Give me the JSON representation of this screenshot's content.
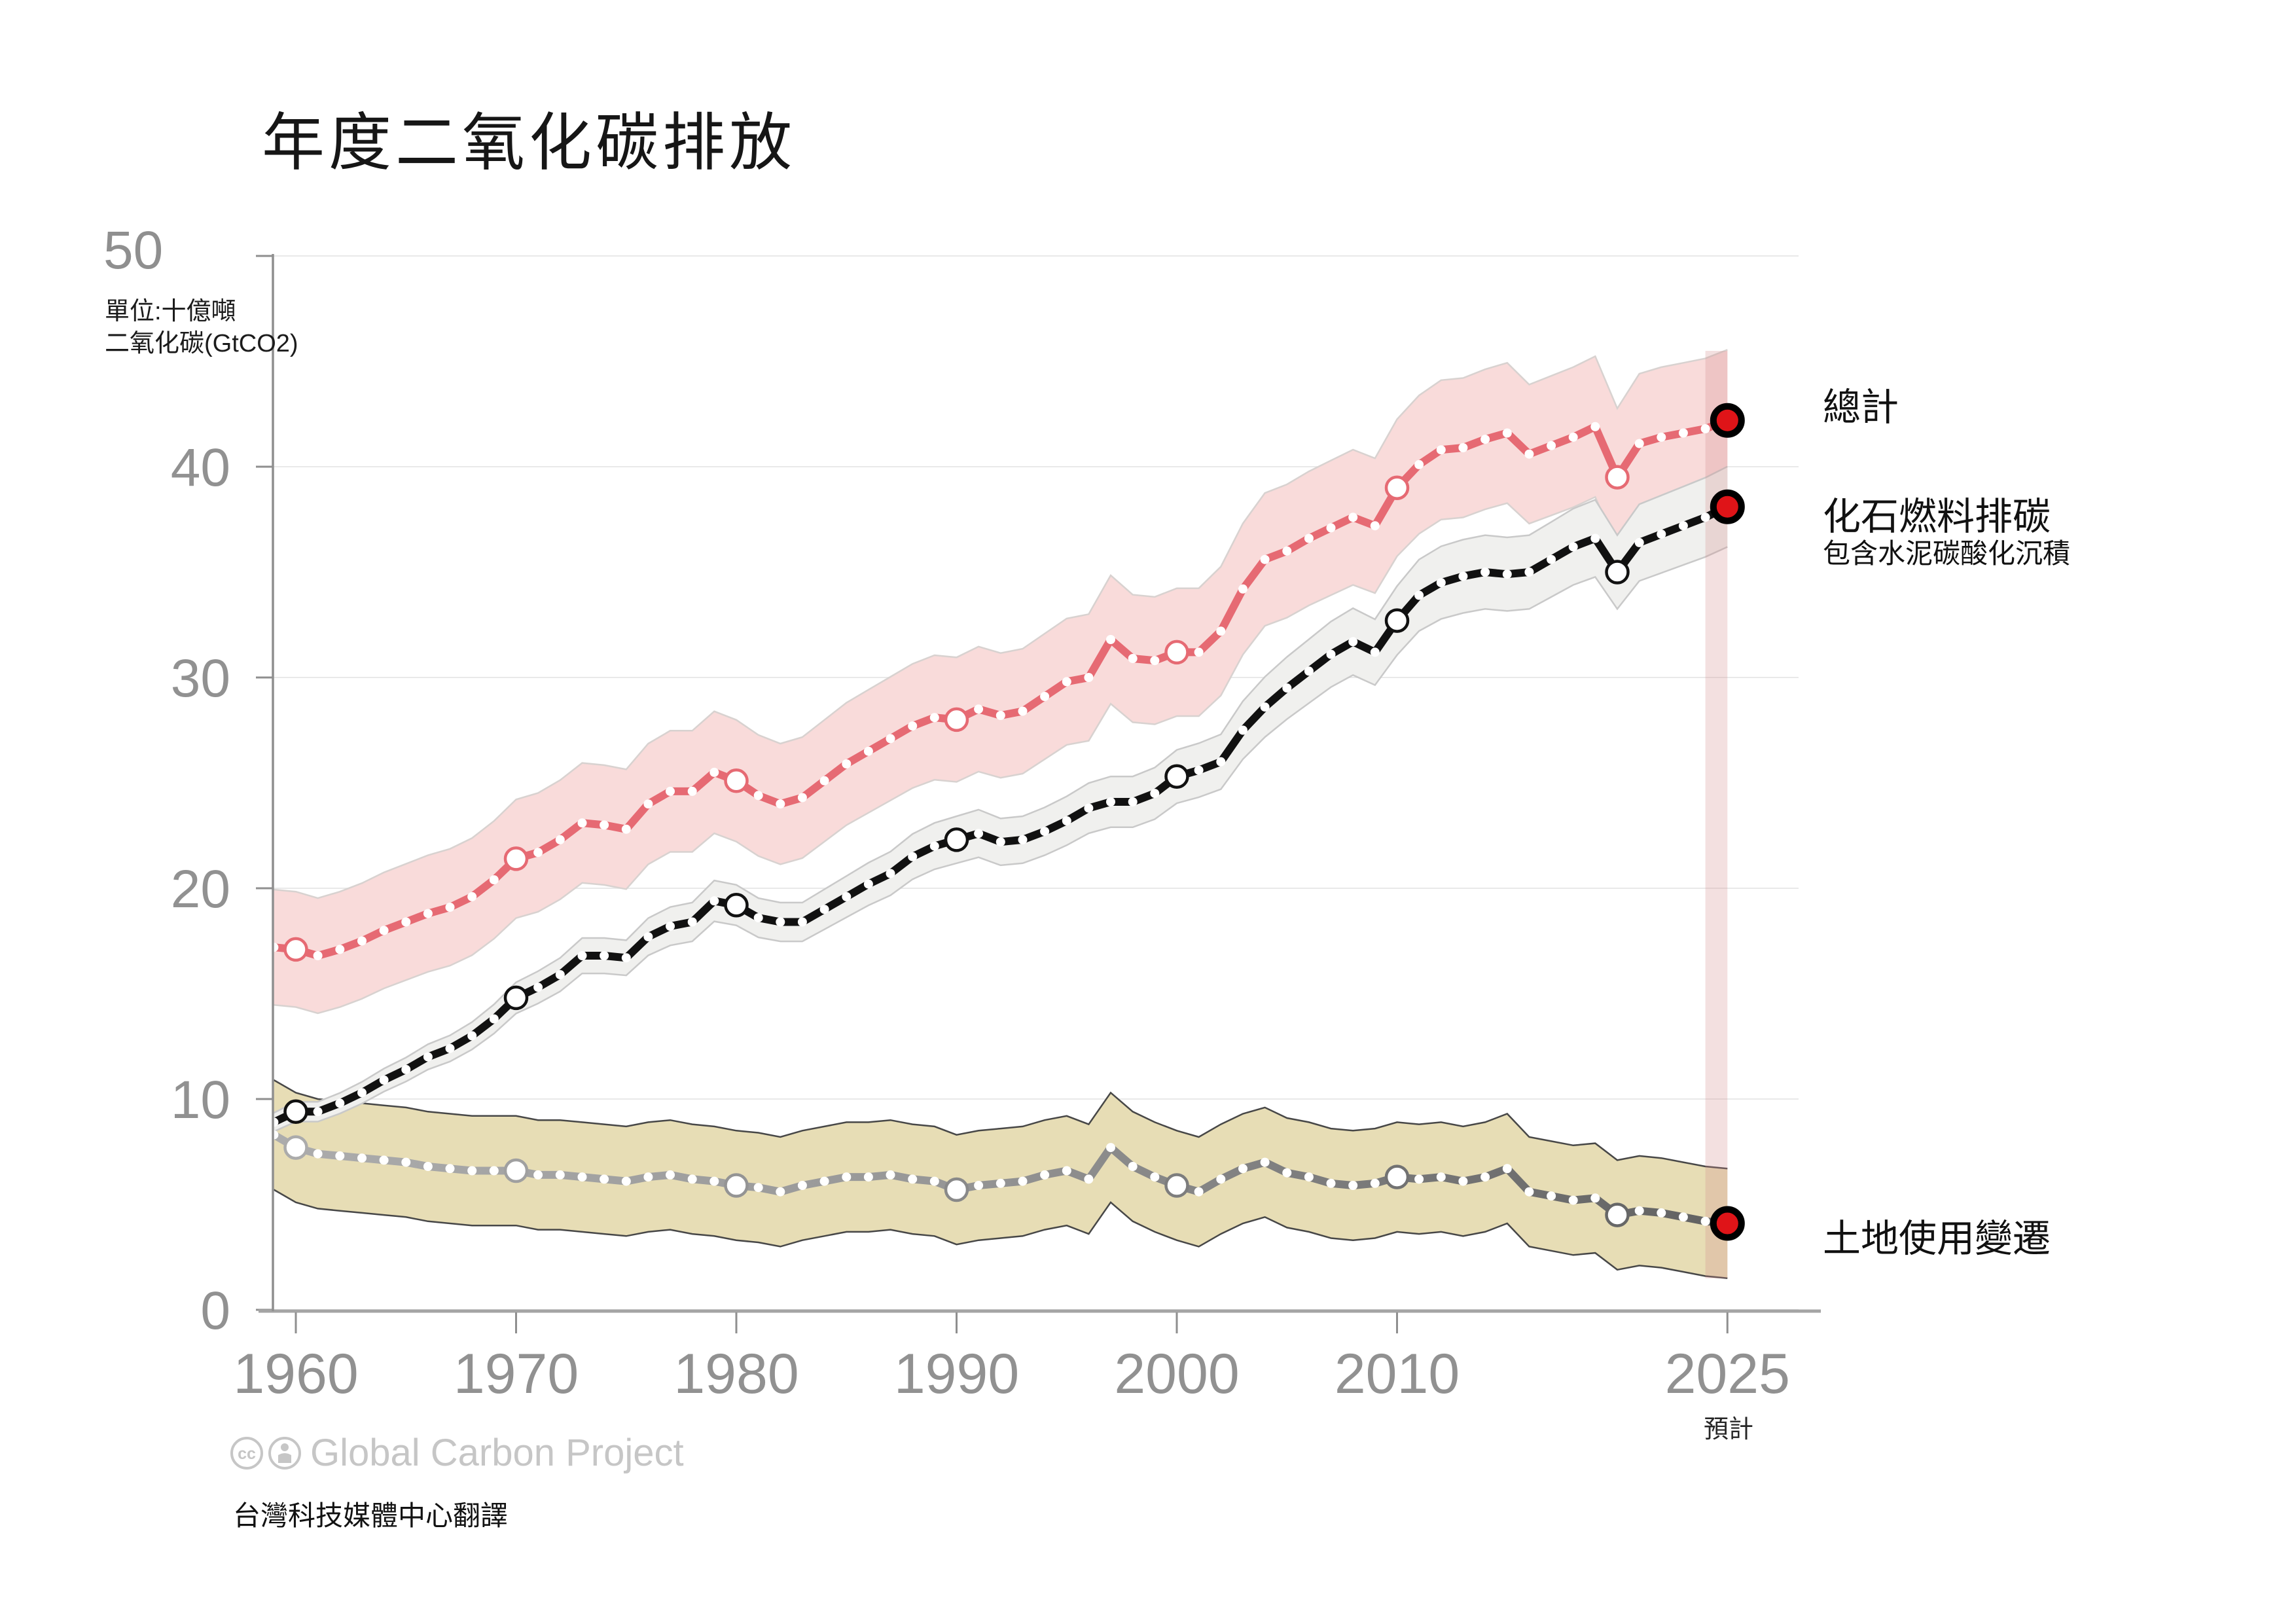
{
  "title": "年度二氧化碳排放",
  "y_axis": {
    "top_label": "50",
    "unit_line1": "單位:十億噸",
    "unit_line2": "二氧化碳(GtCO2)",
    "tick_labels": [
      0,
      10,
      20,
      30,
      40
    ],
    "gridlines": [
      0,
      10,
      20,
      30,
      40,
      50
    ]
  },
  "x_axis": {
    "tick_years": [
      1960,
      1970,
      1980,
      1990,
      2000,
      2010,
      2025
    ],
    "projection_note": "預計"
  },
  "legend": {
    "total_label": "總計",
    "fossil_label": "化石燃料排碳",
    "fossil_sublabel": "包含水泥碳酸化沉積",
    "land_use_label": "土地使用變遷"
  },
  "footer": {
    "attribution": "Global Carbon Project",
    "cc_icon_text": "cc",
    "translation_note": "台灣科技媒體中心翻譯"
  },
  "colors": {
    "total_line": "#e66a73",
    "total_band": "#f9dbda",
    "total_band_edge": "#d8d2d0",
    "fossil_line": "#111111",
    "fossil_band": "#f0f0ee",
    "fossil_band_edge": "#c9c9c9",
    "land_use_line_start": "#acacac",
    "land_use_line_end": "#616161",
    "land_use_band": "#e7ddb5",
    "land_use_band_edge": "#474747",
    "endpoint_fill": "#df1418",
    "endpoint_ring": "#000000",
    "grid": "#e9e9e9",
    "axis": "#8f8f8f",
    "tick_label": "#919191",
    "projection_band": "rgba(210,140,140,0.27)"
  },
  "chart_data": {
    "type": "line",
    "title": "年度二氧化碳排放",
    "ylabel": "單位:十億噸 二氧化碳(GtCO2)",
    "ylim": [
      0,
      50
    ],
    "xlim": [
      1959,
      2025
    ],
    "grid": "horizontal",
    "legend_position": "right-of-line-ends",
    "projection_span": [
      2024,
      2025
    ],
    "decade_marker_years": [
      1960,
      1970,
      1980,
      1990,
      2000,
      2010,
      2020
    ],
    "years": [
      1959,
      1960,
      1961,
      1962,
      1963,
      1964,
      1965,
      1966,
      1967,
      1968,
      1969,
      1970,
      1971,
      1972,
      1973,
      1974,
      1975,
      1976,
      1977,
      1978,
      1979,
      1980,
      1981,
      1982,
      1983,
      1984,
      1985,
      1986,
      1987,
      1988,
      1989,
      1990,
      1991,
      1992,
      1993,
      1994,
      1995,
      1996,
      1997,
      1998,
      1999,
      2000,
      2001,
      2002,
      2003,
      2004,
      2005,
      2006,
      2007,
      2008,
      2009,
      2010,
      2011,
      2012,
      2013,
      2014,
      2015,
      2016,
      2017,
      2018,
      2019,
      2020,
      2021,
      2022,
      2023,
      2024,
      2025
    ],
    "series": [
      {
        "key": "total",
        "name": "總計",
        "values": [
          17.2,
          17.1,
          16.8,
          17.1,
          17.5,
          18.0,
          18.4,
          18.8,
          19.1,
          19.6,
          20.4,
          21.4,
          21.7,
          22.3,
          23.1,
          23.0,
          22.8,
          24.0,
          24.6,
          24.6,
          25.5,
          25.1,
          24.4,
          24.0,
          24.3,
          25.1,
          25.9,
          26.5,
          27.1,
          27.7,
          28.1,
          28.0,
          28.5,
          28.2,
          28.4,
          29.1,
          29.8,
          30.0,
          31.8,
          30.9,
          30.8,
          31.2,
          31.2,
          32.2,
          34.2,
          35.6,
          36.0,
          36.6,
          37.1,
          37.6,
          37.2,
          39.0,
          40.1,
          40.8,
          40.9,
          41.3,
          41.6,
          40.6,
          41.0,
          41.4,
          41.9,
          39.5,
          41.1,
          41.4,
          41.6,
          41.8,
          42.2
        ],
        "uncertainty": {
          "mode": "combined",
          "abs": 2.6,
          "pct": 0.05
        },
        "projected_2025": 42.2
      },
      {
        "key": "fossil",
        "name": "化石燃料排碳 (包含水泥碳酸化沉積)",
        "values": [
          8.9,
          9.4,
          9.4,
          9.8,
          10.3,
          10.9,
          11.4,
          12.0,
          12.4,
          13.0,
          13.8,
          14.8,
          15.3,
          15.9,
          16.8,
          16.8,
          16.7,
          17.7,
          18.2,
          18.4,
          19.4,
          19.2,
          18.6,
          18.4,
          18.4,
          19.0,
          19.6,
          20.2,
          20.7,
          21.5,
          22.0,
          22.3,
          22.6,
          22.2,
          22.3,
          22.7,
          23.2,
          23.8,
          24.1,
          24.1,
          24.5,
          25.3,
          25.6,
          26.0,
          27.5,
          28.6,
          29.5,
          30.3,
          31.1,
          31.7,
          31.2,
          32.7,
          33.9,
          34.5,
          34.8,
          35.0,
          34.9,
          35.0,
          35.6,
          36.2,
          36.6,
          35.0,
          36.4,
          36.8,
          37.2,
          37.6,
          38.1
        ],
        "uncertainty": {
          "mode": "pct",
          "pct": 0.05
        },
        "projected_2025": 38.1
      },
      {
        "key": "land_use",
        "name": "土地使用變遷",
        "values": [
          8.3,
          7.7,
          7.4,
          7.3,
          7.2,
          7.1,
          7.0,
          6.8,
          6.7,
          6.6,
          6.6,
          6.6,
          6.4,
          6.4,
          6.3,
          6.2,
          6.1,
          6.3,
          6.4,
          6.2,
          6.1,
          5.9,
          5.8,
          5.6,
          5.9,
          6.1,
          6.3,
          6.3,
          6.4,
          6.2,
          6.1,
          5.7,
          5.9,
          6.0,
          6.1,
          6.4,
          6.6,
          6.2,
          7.7,
          6.8,
          6.3,
          5.9,
          5.6,
          6.2,
          6.7,
          7.0,
          6.5,
          6.3,
          6.0,
          5.9,
          6.0,
          6.3,
          6.2,
          6.3,
          6.1,
          6.3,
          6.7,
          5.6,
          5.4,
          5.2,
          5.3,
          4.5,
          4.7,
          4.6,
          4.4,
          4.2,
          4.1
        ],
        "uncertainty": {
          "mode": "abs",
          "abs": 2.6
        },
        "projected_2025": 4.1
      }
    ]
  }
}
